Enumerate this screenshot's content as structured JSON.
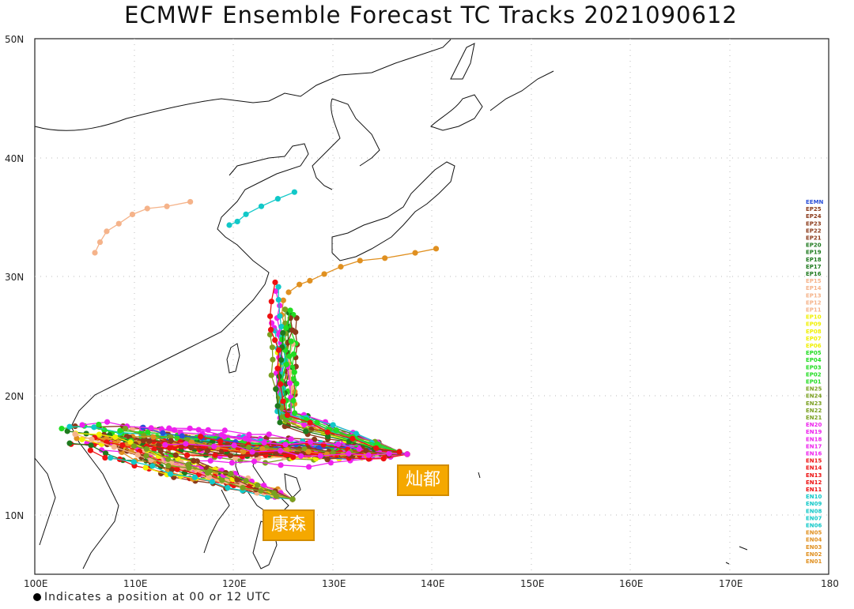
{
  "title": "ECMWF Ensemble Forecast TC Tracks 2021090612",
  "footnote": "Indicates a position at 00 or 12 UTC",
  "lat_labels": [
    "50N",
    "40N",
    "30N",
    "20N",
    "10N"
  ],
  "lon_labels": [
    "100E",
    "110E",
    "120E",
    "130E",
    "140E",
    "150E",
    "160E",
    "170E",
    "180"
  ],
  "storm_labels": [
    {
      "name": "灿都",
      "id": "chanthu"
    },
    {
      "name": "康森",
      "id": "conson"
    }
  ],
  "legend": [
    {
      "label": "EEMN",
      "color": "#2a4fd8"
    },
    {
      "label": "EP25",
      "color": "#8b3a1a"
    },
    {
      "label": "EP24",
      "color": "#8b3a1a"
    },
    {
      "label": "EP23",
      "color": "#8b3a1a"
    },
    {
      "label": "EP22",
      "color": "#8b3a1a"
    },
    {
      "label": "EP21",
      "color": "#8b3a1a"
    },
    {
      "label": "EP20",
      "color": "#1e7a1e"
    },
    {
      "label": "EP19",
      "color": "#1e7a1e"
    },
    {
      "label": "EP18",
      "color": "#1e7a1e"
    },
    {
      "label": "EP17",
      "color": "#1e7a1e"
    },
    {
      "label": "EP16",
      "color": "#1e7a1e"
    },
    {
      "label": "EP15",
      "color": "#f5b38a"
    },
    {
      "label": "EP14",
      "color": "#f5b38a"
    },
    {
      "label": "EP13",
      "color": "#f5b38a"
    },
    {
      "label": "EP12",
      "color": "#f5b38a"
    },
    {
      "label": "EP11",
      "color": "#f5b38a"
    },
    {
      "label": "EP10",
      "color": "#f0f000"
    },
    {
      "label": "EP09",
      "color": "#f0f000"
    },
    {
      "label": "EP08",
      "color": "#f0f000"
    },
    {
      "label": "EP07",
      "color": "#f0f000"
    },
    {
      "label": "EP06",
      "color": "#f0f000"
    },
    {
      "label": "EP05",
      "color": "#22dd22"
    },
    {
      "label": "EP04",
      "color": "#22dd22"
    },
    {
      "label": "EP03",
      "color": "#22dd22"
    },
    {
      "label": "EP02",
      "color": "#22dd22"
    },
    {
      "label": "EP01",
      "color": "#22dd22"
    },
    {
      "label": "EN25",
      "color": "#7aa020"
    },
    {
      "label": "EN24",
      "color": "#7aa020"
    },
    {
      "label": "EN23",
      "color": "#7aa020"
    },
    {
      "label": "EN22",
      "color": "#7aa020"
    },
    {
      "label": "EN21",
      "color": "#7aa020"
    },
    {
      "label": "EN20",
      "color": "#ee22ee"
    },
    {
      "label": "EN19",
      "color": "#ee22ee"
    },
    {
      "label": "EN18",
      "color": "#ee22ee"
    },
    {
      "label": "EN17",
      "color": "#ee22ee"
    },
    {
      "label": "EN16",
      "color": "#ee22ee"
    },
    {
      "label": "EN15",
      "color": "#ee1111"
    },
    {
      "label": "EN14",
      "color": "#ee1111"
    },
    {
      "label": "EN13",
      "color": "#ee1111"
    },
    {
      "label": "EN12",
      "color": "#ee1111"
    },
    {
      "label": "EN11",
      "color": "#ee1111"
    },
    {
      "label": "EN10",
      "color": "#11c8c8"
    },
    {
      "label": "EN09",
      "color": "#11c8c8"
    },
    {
      "label": "EN08",
      "color": "#11c8c8"
    },
    {
      "label": "EN07",
      "color": "#11c8c8"
    },
    {
      "label": "EN06",
      "color": "#11c8c8"
    },
    {
      "label": "EN05",
      "color": "#e09020"
    },
    {
      "label": "EN04",
      "color": "#e09020"
    },
    {
      "label": "EN03",
      "color": "#e09020"
    },
    {
      "label": "EN02",
      "color": "#e09020"
    },
    {
      "label": "EN01",
      "color": "#e09020"
    }
  ],
  "map_extent": {
    "lon": [
      100,
      180
    ],
    "lat": [
      5,
      50
    ]
  }
}
